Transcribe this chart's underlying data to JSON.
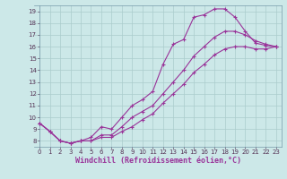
{
  "xlabel": "Windchill (Refroidissement éolien,°C)",
  "bg_color": "#cce8e8",
  "line_color": "#993399",
  "grid_color": "#aacccc",
  "xlim": [
    -0.5,
    23.5
  ],
  "ylim": [
    7.5,
    19.5
  ],
  "xticks": [
    0,
    1,
    2,
    3,
    4,
    5,
    6,
    7,
    8,
    9,
    10,
    11,
    12,
    13,
    14,
    15,
    16,
    17,
    18,
    19,
    20,
    21,
    22,
    23
  ],
  "yticks": [
    8,
    9,
    10,
    11,
    12,
    13,
    14,
    15,
    16,
    17,
    18,
    19
  ],
  "line1_x": [
    0,
    1,
    2,
    3,
    4,
    5,
    6,
    7,
    8,
    9,
    10,
    11,
    12,
    13,
    14,
    15,
    16,
    17,
    18,
    19,
    20,
    21,
    22,
    23
  ],
  "line1_y": [
    9.5,
    8.8,
    8.0,
    7.8,
    8.0,
    8.3,
    9.2,
    9.0,
    10.0,
    11.0,
    11.5,
    12.2,
    14.5,
    16.2,
    16.6,
    18.5,
    18.7,
    19.2,
    19.2,
    18.5,
    17.3,
    16.3,
    16.1,
    16.0
  ],
  "line2_x": [
    0,
    1,
    2,
    3,
    4,
    5,
    6,
    7,
    8,
    9,
    10,
    11,
    12,
    13,
    14,
    15,
    16,
    17,
    18,
    19,
    20,
    21,
    22,
    23
  ],
  "line2_y": [
    9.5,
    8.8,
    8.0,
    7.8,
    8.0,
    8.0,
    8.5,
    8.5,
    9.2,
    10.0,
    10.5,
    11.0,
    12.0,
    13.0,
    14.0,
    15.2,
    16.0,
    16.8,
    17.3,
    17.3,
    17.0,
    16.5,
    16.2,
    16.0
  ],
  "line3_x": [
    0,
    1,
    2,
    3,
    4,
    5,
    6,
    7,
    8,
    9,
    10,
    11,
    12,
    13,
    14,
    15,
    16,
    17,
    18,
    19,
    20,
    21,
    22,
    23
  ],
  "line3_y": [
    9.5,
    8.8,
    8.0,
    7.8,
    8.0,
    8.0,
    8.3,
    8.3,
    8.8,
    9.2,
    9.8,
    10.3,
    11.2,
    12.0,
    12.8,
    13.8,
    14.5,
    15.3,
    15.8,
    16.0,
    16.0,
    15.8,
    15.8,
    16.0
  ],
  "marker": "+",
  "markersize": 3,
  "linewidth": 0.8,
  "tick_fontsize": 5,
  "label_fontsize": 6,
  "spine_color": "#7799aa"
}
